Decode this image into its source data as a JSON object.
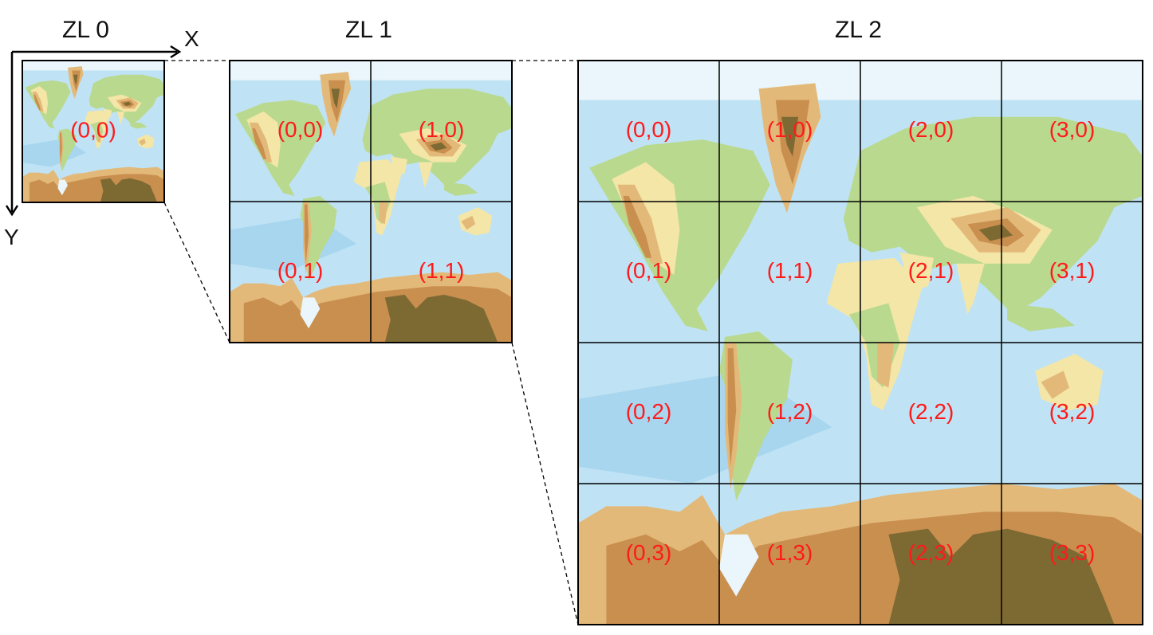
{
  "levels": [
    {
      "title": "ZL 0",
      "n": 1,
      "labels": [
        "(0,0)"
      ]
    },
    {
      "title": "ZL 1",
      "n": 2,
      "labels": [
        "(0,0)",
        "(1,0)",
        "(0,1)",
        "(1,1)"
      ]
    },
    {
      "title": "ZL 2",
      "n": 4,
      "labels": [
        "(0,0)",
        "(1,0)",
        "(2,0)",
        "(3,0)",
        "(0,1)",
        "(1,1)",
        "(2,1)",
        "(3,1)",
        "(0,2)",
        "(1,2)",
        "(2,2)",
        "(3,2)",
        "(0,3)",
        "(1,3)",
        "(2,3)",
        "(3,3)"
      ]
    }
  ],
  "axes": {
    "x_label": "X",
    "y_label": "Y"
  },
  "colors": {
    "ocean": "#bfe3f5",
    "deep_ocean": "#a9d6ef",
    "lowland": "#b9d98f",
    "plain": "#f4e6a6",
    "hill": "#e3b97a",
    "mountain": "#c98f4f",
    "peak": "#7d6a33",
    "ice": "#eaf6fb",
    "label": "#ff1a1a",
    "grid": "#000000"
  }
}
